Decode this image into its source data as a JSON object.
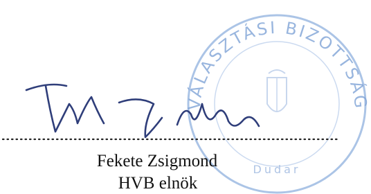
{
  "stamp": {
    "ring_text": "VÁLASZTÁSI BIZOTTSÁG",
    "place": "Dudar"
  },
  "signatory": {
    "name": "Fekete Zsigmond",
    "title": "HVB elnök"
  }
}
